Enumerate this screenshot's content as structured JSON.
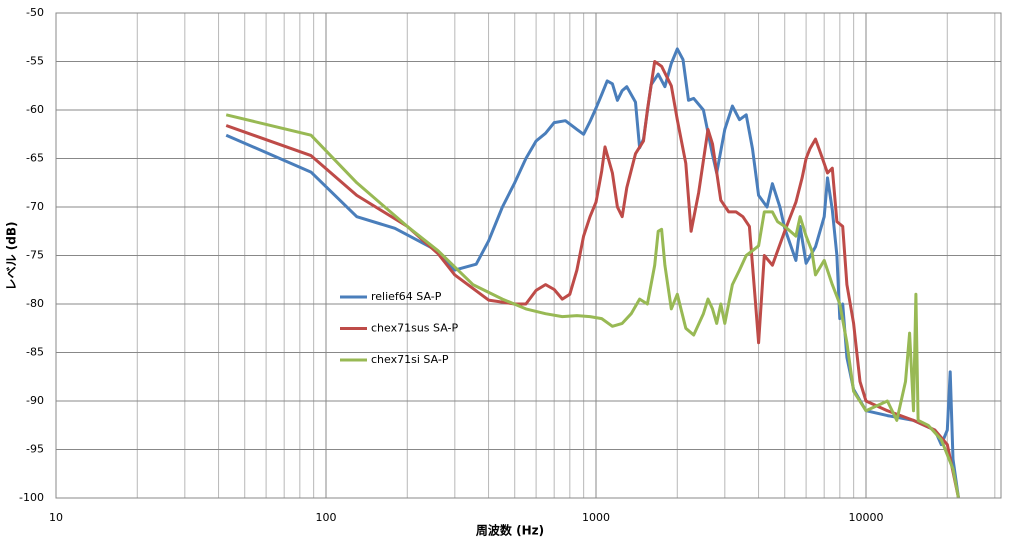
{
  "chart_data": {
    "type": "line",
    "x_label": "周波数 (Hz)",
    "y_label": "レベル (dB)",
    "x_scale": "log",
    "xlim": [
      10,
      31623
    ],
    "xticks": [
      10,
      100,
      1000,
      10000
    ],
    "ylim": [
      -100,
      -50
    ],
    "yticks": [
      -100,
      -95,
      -90,
      -85,
      -80,
      -75,
      -70,
      -65,
      -60,
      -55,
      -50
    ],
    "grid": true,
    "minor_grid": true,
    "legend": "center",
    "series": [
      {
        "name": "relief64 SA-P",
        "color": "#4a7ebb",
        "x": [
          42.7,
          88,
          130,
          180,
          250,
          300,
          360,
          400,
          450,
          500,
          550,
          600,
          650,
          700,
          770,
          850,
          900,
          950,
          1000,
          1050,
          1100,
          1150,
          1200,
          1250,
          1300,
          1400,
          1450,
          1500,
          1600,
          1700,
          1800,
          1900,
          2000,
          2100,
          2200,
          2300,
          2500,
          2700,
          2800,
          3000,
          3200,
          3400,
          3600,
          3800,
          4000,
          4300,
          4500,
          4800,
          5000,
          5500,
          5700,
          6000,
          6500,
          7000,
          7200,
          7500,
          7800,
          8000,
          8200,
          8500,
          9000,
          10000,
          12000,
          15000,
          18000,
          19000,
          20000,
          20500,
          21000,
          22000
        ],
        "values": [
          -62.6,
          -66.4,
          -71,
          -72.2,
          -74.3,
          -76.5,
          -75.9,
          -73.5,
          -70,
          -67.5,
          -65,
          -63.2,
          -62.4,
          -61.3,
          -61.1,
          -62,
          -62.5,
          -61.2,
          -59.8,
          -58.4,
          -57,
          -57.3,
          -59,
          -58,
          -57.6,
          -59.2,
          -63.9,
          -63,
          -57.4,
          -56.3,
          -57.6,
          -55.2,
          -53.7,
          -54.8,
          -59,
          -58.8,
          -60,
          -64.6,
          -66.5,
          -62,
          -59.6,
          -61,
          -60.5,
          -64,
          -68.8,
          -70,
          -67.6,
          -70,
          -72.2,
          -75.5,
          -72,
          -75.8,
          -74.1,
          -71,
          -67,
          -70.3,
          -75,
          -81.5,
          -80,
          -85.5,
          -88.8,
          -91,
          -91.5,
          -92,
          -93,
          -94.5,
          -93,
          -87,
          -96,
          -100
        ]
      },
      {
        "name": "chex71sus SA-P",
        "color": "#be4b48",
        "x": [
          42.7,
          88,
          130,
          200,
          260,
          300,
          400,
          500,
          550,
          600,
          650,
          700,
          750,
          800,
          850,
          900,
          950,
          1000,
          1050,
          1080,
          1150,
          1200,
          1250,
          1300,
          1400,
          1500,
          1550,
          1650,
          1750,
          1900,
          2000,
          2150,
          2250,
          2400,
          2600,
          2700,
          2900,
          3100,
          3300,
          3500,
          3700,
          3900,
          4000,
          4200,
          4500,
          5000,
          5500,
          5800,
          6000,
          6200,
          6500,
          6800,
          7200,
          7500,
          7800,
          8200,
          8500,
          9000,
          9500,
          10000,
          12000,
          15000,
          18000,
          20000,
          22000
        ],
        "values": [
          -61.6,
          -64.7,
          -68.8,
          -72,
          -74.8,
          -77,
          -79.6,
          -80,
          -80,
          -78.6,
          -78,
          -78.5,
          -79.5,
          -79,
          -76.5,
          -73,
          -71,
          -69.5,
          -66.3,
          -63.8,
          -66.5,
          -70,
          -71,
          -68,
          -64.5,
          -63.2,
          -60,
          -55,
          -55.5,
          -57.5,
          -61,
          -65.5,
          -72.5,
          -68.5,
          -62,
          -63.5,
          -69.3,
          -70.5,
          -70.5,
          -71,
          -72,
          -80,
          -84,
          -75,
          -76,
          -72.5,
          -69.5,
          -67,
          -65,
          -64,
          -63,
          -64.5,
          -66.5,
          -66,
          -71.5,
          -72,
          -78,
          -82,
          -88,
          -90,
          -91,
          -92,
          -93,
          -94.5,
          -100
        ]
      },
      {
        "name": "chex71si SA-P",
        "color": "#98b954",
        "x": [
          42.7,
          88,
          130,
          200,
          260,
          350,
          450,
          550,
          650,
          750,
          850,
          950,
          1050,
          1150,
          1250,
          1350,
          1450,
          1550,
          1650,
          1700,
          1750,
          1800,
          1900,
          2000,
          2150,
          2300,
          2500,
          2600,
          2700,
          2800,
          2900,
          3000,
          3200,
          3400,
          3600,
          3800,
          4000,
          4200,
          4500,
          4700,
          5000,
          5500,
          5700,
          6000,
          6300,
          6500,
          7000,
          7500,
          8000,
          8500,
          9000,
          10000,
          12000,
          13000,
          14000,
          14500,
          15000,
          15300,
          15600,
          17000,
          19000,
          21000,
          22000
        ],
        "values": [
          -60.5,
          -62.6,
          -67.5,
          -72,
          -74.5,
          -78,
          -79.5,
          -80.5,
          -81,
          -81.3,
          -81.2,
          -81.3,
          -81.5,
          -82.3,
          -82,
          -81,
          -79.5,
          -80,
          -76,
          -72.5,
          -72.3,
          -76,
          -80.5,
          -79,
          -82.5,
          -83.2,
          -81,
          -79.5,
          -80.5,
          -82,
          -80,
          -82,
          -78,
          -76.5,
          -75,
          -74.5,
          -74,
          -70.5,
          -70.5,
          -71.5,
          -72,
          -73,
          -71,
          -73,
          -74.5,
          -77,
          -75.5,
          -78,
          -80,
          -84,
          -89,
          -91,
          -90,
          -92,
          -88,
          -83,
          -91,
          -79,
          -92,
          -92.5,
          -94,
          -97,
          -100
        ]
      }
    ]
  }
}
